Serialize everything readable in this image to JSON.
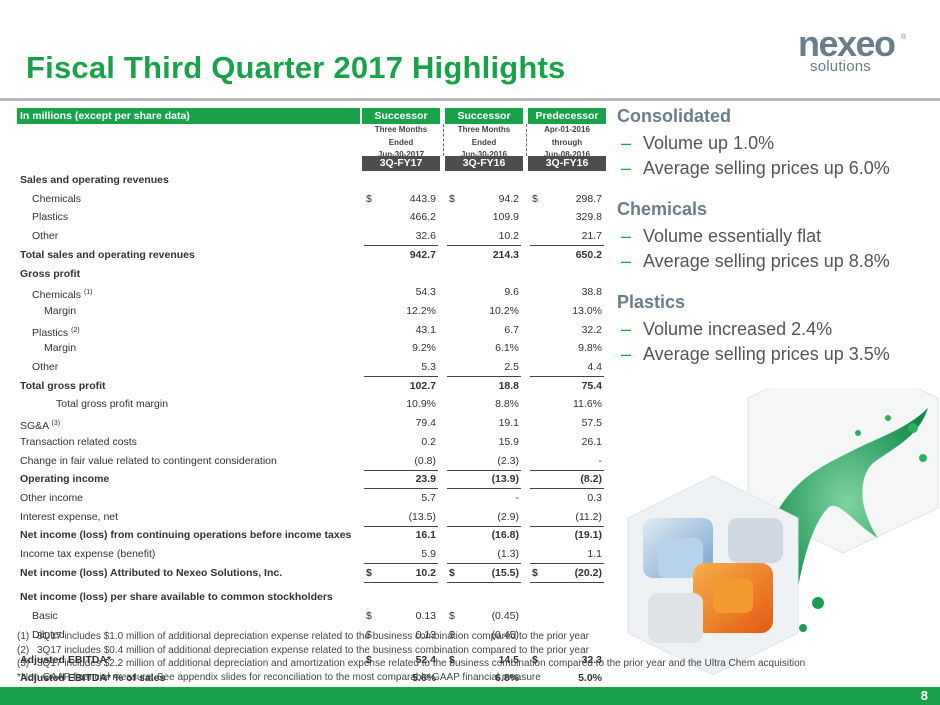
{
  "title": "Fiscal Third Quarter 2017 Highlights",
  "logo": {
    "brand": "nexeo",
    "sub": "solutions",
    "reg": "®"
  },
  "table": {
    "header_label": "In millions (except per share data)",
    "columns": [
      {
        "status": "Successor",
        "period": [
          "Three Months",
          "Ended",
          "Jun-30-2017"
        ],
        "fy": "3Q-FY17"
      },
      {
        "status": "Successor",
        "period": [
          "Three Months",
          "Ended",
          "Jun-30-2016"
        ],
        "fy": "3Q-FY16"
      },
      {
        "status": "Predecessor",
        "period": [
          "Apr-01-2016",
          "through",
          "Jun-08-2016"
        ],
        "fy": "3Q-FY16"
      }
    ],
    "rows": [
      {
        "label": "Sales and operating revenues",
        "indent": 0,
        "bold": true,
        "values": [
          "",
          "",
          ""
        ],
        "dollar": [
          false,
          false,
          false
        ]
      },
      {
        "label": "Chemicals",
        "indent": 1,
        "bold": false,
        "values": [
          "443.9",
          "94.2",
          "298.7"
        ],
        "dollar": [
          true,
          true,
          true
        ]
      },
      {
        "label": "Plastics",
        "indent": 1,
        "bold": false,
        "values": [
          "466.2",
          "109.9",
          "329.8"
        ],
        "dollar": [
          false,
          false,
          false
        ]
      },
      {
        "label": "Other",
        "indent": 1,
        "bold": false,
        "values": [
          "32.6",
          "10.2",
          "21.7"
        ],
        "dollar": [
          false,
          false,
          false
        ],
        "underline": true
      },
      {
        "label": "Total sales and operating revenues",
        "indent": 0,
        "bold": true,
        "values": [
          "942.7",
          "214.3",
          "650.2"
        ],
        "dollar": [
          false,
          false,
          false
        ]
      },
      {
        "label": "Gross profit",
        "indent": 0,
        "bold": true,
        "values": [
          "",
          "",
          ""
        ],
        "dollar": [
          false,
          false,
          false
        ]
      },
      {
        "label": "Chemicals",
        "sup": "(1)",
        "indent": 1,
        "bold": false,
        "values": [
          "54.3",
          "9.6",
          "38.8"
        ],
        "dollar": [
          false,
          false,
          false
        ]
      },
      {
        "label": "Margin",
        "indent": 2,
        "bold": false,
        "values": [
          "12.2%",
          "10.2%",
          "13.0%"
        ],
        "dollar": [
          false,
          false,
          false
        ]
      },
      {
        "label": "Plastics",
        "sup": "(2)",
        "indent": 1,
        "bold": false,
        "values": [
          "43.1",
          "6.7",
          "32.2"
        ],
        "dollar": [
          false,
          false,
          false
        ]
      },
      {
        "label": "Margin",
        "indent": 2,
        "bold": false,
        "values": [
          "9.2%",
          "6.1%",
          "9.8%"
        ],
        "dollar": [
          false,
          false,
          false
        ]
      },
      {
        "label": "Other",
        "indent": 1,
        "bold": false,
        "values": [
          "5.3",
          "2.5",
          "4.4"
        ],
        "dollar": [
          false,
          false,
          false
        ],
        "underline": true
      },
      {
        "label": "Total gross profit",
        "indent": 0,
        "bold": true,
        "values": [
          "102.7",
          "18.8",
          "75.4"
        ],
        "dollar": [
          false,
          false,
          false
        ]
      },
      {
        "label": "Total gross profit margin",
        "indent": 3,
        "bold": false,
        "values": [
          "10.9%",
          "8.8%",
          "11.6%"
        ],
        "dollar": [
          false,
          false,
          false
        ]
      },
      {
        "label": "SG&A",
        "sup": "(3)",
        "indent": 0,
        "bold": false,
        "values": [
          "79.4",
          "19.1",
          "57.5"
        ],
        "dollar": [
          false,
          false,
          false
        ]
      },
      {
        "label": "Transaction related costs",
        "indent": 0,
        "bold": false,
        "values": [
          "0.2",
          "15.9",
          "26.1"
        ],
        "dollar": [
          false,
          false,
          false
        ]
      },
      {
        "label": "Change in fair value related to contingent consideration",
        "indent": 0,
        "bold": false,
        "values": [
          "(0.8)",
          "(2.3)",
          "-"
        ],
        "dollar": [
          false,
          false,
          false
        ],
        "underline": true
      },
      {
        "label": "Operating income",
        "indent": 0,
        "bold": true,
        "values": [
          "23.9",
          "(13.9)",
          "(8.2)"
        ],
        "dollar": [
          false,
          false,
          false
        ],
        "underline": true
      },
      {
        "label": "Other income",
        "indent": 0,
        "bold": false,
        "values": [
          "5.7",
          "-",
          "0.3"
        ],
        "dollar": [
          false,
          false,
          false
        ]
      },
      {
        "label": "Interest expense, net",
        "indent": 0,
        "bold": false,
        "values": [
          "(13.5)",
          "(2.9)",
          "(11.2)"
        ],
        "dollar": [
          false,
          false,
          false
        ],
        "underline": true
      },
      {
        "label": "Net income (loss) from continuing operations before income taxes",
        "indent": 0,
        "bold": true,
        "values": [
          "16.1",
          "(16.8)",
          "(19.1)"
        ],
        "dollar": [
          false,
          false,
          false
        ]
      },
      {
        "label": "Income tax expense (benefit)",
        "indent": 0,
        "bold": false,
        "values": [
          "5.9",
          "(1.3)",
          "1.1"
        ],
        "dollar": [
          false,
          false,
          false
        ],
        "underline": true
      },
      {
        "label": "Net income (loss) Attributed to Nexeo Solutions, Inc.",
        "indent": 0,
        "bold": true,
        "values": [
          "10.2",
          "(15.5)",
          "(20.2)"
        ],
        "dollar": [
          true,
          true,
          true
        ],
        "underline": true
      },
      {
        "label": "Net income (loss) per share available to common stockholders",
        "indent": 0,
        "bold": true,
        "values": [
          "",
          "",
          ""
        ],
        "dollar": [
          false,
          false,
          false
        ],
        "gap": true
      },
      {
        "label": "Basic",
        "indent": 1,
        "bold": false,
        "values": [
          "0.13",
          "(0.45)",
          ""
        ],
        "dollar": [
          true,
          true,
          false
        ]
      },
      {
        "label": "Diluted",
        "indent": 1,
        "bold": false,
        "values": [
          "0.13",
          "(0.45)",
          ""
        ],
        "dollar": [
          true,
          true,
          false
        ]
      },
      {
        "label": "Adjusted EBITDA*",
        "indent": 0,
        "bold": true,
        "values": [
          "52.4",
          "14.5",
          "32.3"
        ],
        "dollar": [
          true,
          true,
          true
        ],
        "gap": true
      },
      {
        "label": "Adjusted EBITDA* % of sales",
        "indent": 0,
        "bold": true,
        "values": [
          "5.6%",
          "6.8%",
          "5.0%"
        ],
        "dollar": [
          false,
          false,
          false
        ]
      }
    ]
  },
  "panel": [
    {
      "heading": "Consolidated",
      "bullets": [
        "Volume up 1.0%",
        "Average selling prices up 6.0%"
      ]
    },
    {
      "heading": "Chemicals",
      "bullets": [
        "Volume essentially flat",
        "Average selling prices up 8.8%"
      ]
    },
    {
      "heading": "Plastics",
      "bullets": [
        "Volume increased 2.4%",
        "Average selling prices up 3.5%"
      ]
    }
  ],
  "bullet_dash": "–",
  "dollar_sign": "$",
  "notes": [
    {
      "key": "(1)",
      "text": "3Q17 includes $1.0 million of additional depreciation expense related to the business combination compared to the prior year"
    },
    {
      "key": "(2)",
      "text": "3Q17 includes $0.4 million of additional depreciation expense related to the business combination compared to the prior year"
    },
    {
      "key": "(3)",
      "text": "3Q17 includes $2.2 million of additional depreciation and amortization expense related to the business combination compared to the prior year and the Ultra Chem acquisition"
    },
    {
      "key": "",
      "text": "*Non-GAAP financial measure; See appendix slides for reconciliation to the most comparable GAAP financial measure"
    }
  ],
  "page_number": "8",
  "colors": {
    "brand_green": "#19a24a",
    "dark_gray": "#4d4d4d",
    "slate": "#6a7d8a"
  }
}
